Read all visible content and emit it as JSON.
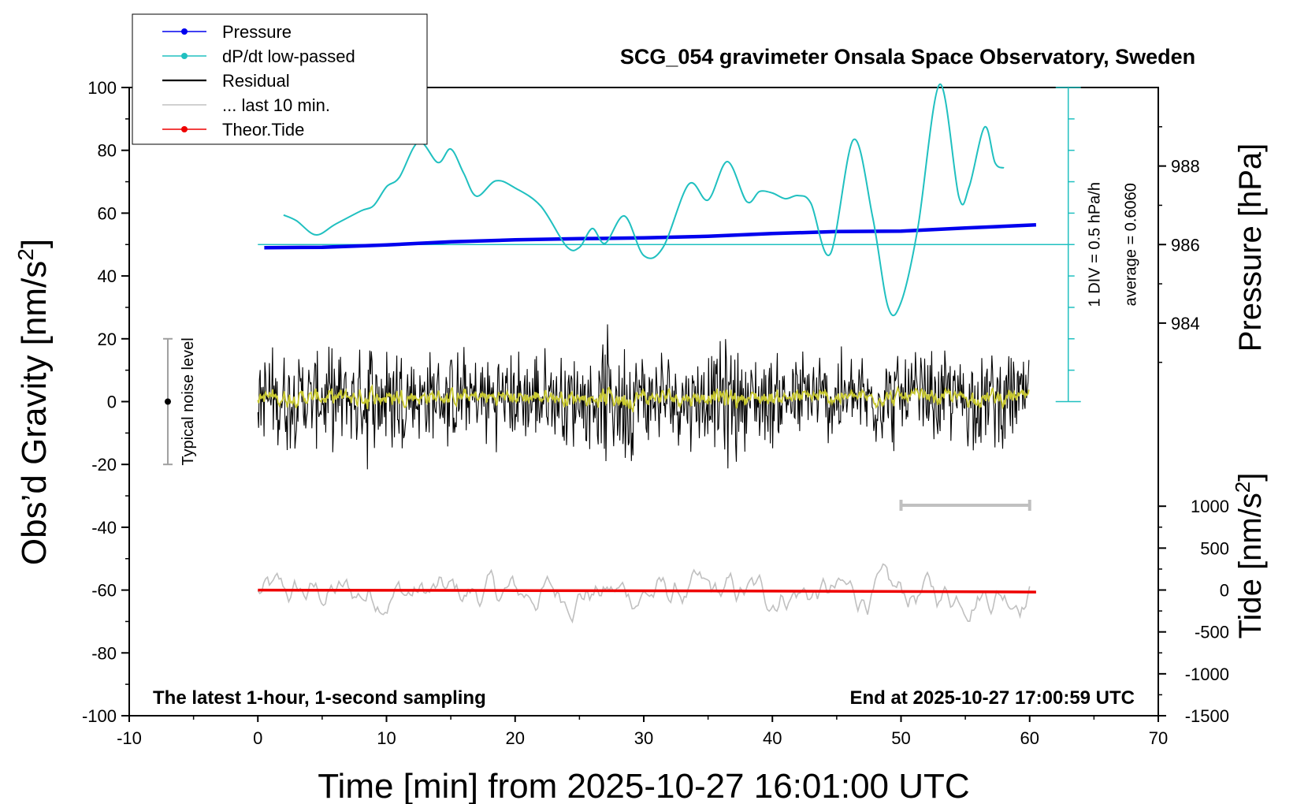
{
  "chart_data": {
    "type": "line",
    "title": "SCG_054 gravimeter Onsala Space Observatory, Sweden",
    "xlabel": "Time [min] from 2025-10-27 16:01:00 UTC",
    "ylabel_left": "Obs’d Gravity [nm/s2]",
    "ylabel_left_base": "Obs’d Gravity [nm/s",
    "ylabel_sup": "2",
    "ylabel_close": "]",
    "ylabel_right_top": "Pressure [hPa]",
    "ylabel_right_bottom_base": "Tide [nm/s",
    "xlim": [
      -10,
      70
    ],
    "ylim_left": [
      -100,
      100
    ],
    "x_ticks": [
      -10,
      0,
      10,
      20,
      30,
      40,
      50,
      60,
      70
    ],
    "x_tick_labels": [
      "-10",
      "0",
      "10",
      "20",
      "30",
      "40",
      "50",
      "60",
      "70"
    ],
    "y_left_ticks": [
      100,
      80,
      60,
      40,
      20,
      0,
      -20,
      -40,
      -60,
      -80,
      -100
    ],
    "y_left_tick_labels": [
      "100",
      "80",
      "60",
      "40",
      "20",
      "0",
      "-20",
      "-40",
      "-60",
      "-80",
      "-100"
    ],
    "pressure_ticks": [
      988,
      986,
      984
    ],
    "pressure_tick_labels": [
      "988",
      "986",
      "984"
    ],
    "pressure_axis": {
      "ref_hpa": 986,
      "ref_gravity": 50,
      "hpa_per_unit": 0.08
    },
    "tide_ticks": [
      1000,
      500,
      0,
      -500,
      -1000,
      -1500
    ],
    "tide_tick_labels": [
      "1000",
      "500",
      "0",
      "-500",
      "-1000",
      "-1500"
    ],
    "tide_axis": {
      "min": -1500,
      "max": 1000,
      "gravity_at_min": -100,
      "gravity_at_max": -33.3
    },
    "legend": [
      {
        "label": "Pressure",
        "color": "#0000ee",
        "marker": true
      },
      {
        "label": "dP/dt low-passed",
        "color": "#20c0c0",
        "marker": true
      },
      {
        "label": "Residual",
        "color": "#000000",
        "marker": false
      },
      {
        "label": "... last 10 min.",
        "color": "#c0c0c0",
        "marker": false
      },
      {
        "label": "Theor.Tide",
        "color": "#ee0000",
        "marker": true
      }
    ],
    "series": [
      {
        "name": "Pressure",
        "color": "#0000ee",
        "axis": "pressure_hpa",
        "x": [
          0.5,
          5,
          10,
          15,
          20,
          25,
          30,
          35,
          40,
          45,
          50,
          55,
          60.5
        ],
        "values": [
          985.92,
          985.93,
          985.99,
          986.07,
          986.12,
          986.15,
          986.17,
          986.21,
          986.28,
          986.33,
          986.34,
          986.42,
          986.5
        ]
      },
      {
        "name": "dP/dt low-passed",
        "color": "#20c0c0",
        "axis": "dpdt_div",
        "x": [
          2,
          3,
          4.5,
          6,
          8,
          9,
          10,
          11,
          12.5,
          14,
          15,
          16,
          17,
          18.5,
          20,
          22,
          24,
          25,
          26,
          27,
          28.5,
          30,
          31.5,
          33.5,
          35,
          36.5,
          38,
          39,
          40,
          41,
          42,
          43,
          44.5,
          46.3,
          47.8,
          49,
          50,
          51.3,
          53,
          54.5,
          55.3,
          56.5,
          57.3,
          58
        ],
        "values": [
          0.94,
          0.76,
          0.31,
          0.64,
          1.07,
          1.24,
          1.84,
          2.14,
          3.27,
          2.61,
          3.04,
          2.27,
          1.54,
          2.03,
          1.8,
          1.22,
          -0.06,
          -0.09,
          0.51,
          0.04,
          0.91,
          -0.35,
          -0.09,
          1.92,
          1.42,
          2.64,
          1.37,
          1.69,
          1.64,
          1.46,
          1.56,
          1.31,
          -0.3,
          3.34,
          0.86,
          -2.0,
          -1.84,
          0.51,
          5.1,
          1.51,
          1.84,
          3.74,
          2.61,
          2.44
        ]
      },
      {
        "name": "Theor.Tide",
        "color": "#ee0000",
        "axis": "tide",
        "x": [
          0,
          10,
          20,
          30,
          40,
          50,
          60.5
        ],
        "values": [
          -1,
          -4,
          -6,
          -9,
          -13,
          -18,
          -24
        ]
      }
    ],
    "dpdt_axis": {
      "div_label": "1 DIV = 0.5 hPa/h",
      "average_label": "average = 0.6060",
      "x": 63,
      "baseline_gravity": 50,
      "units_per_div": 10,
      "divisions": 5
    },
    "residual_band": {
      "x_start": 0,
      "x_end": 60,
      "amplitude": 18,
      "center": 1
    },
    "last10_band": {
      "x_start": 0,
      "x_end": 60,
      "center": -61,
      "amplitude": 9
    },
    "last10_bar": {
      "x_start": 50,
      "x_end": 60,
      "y": -33
    },
    "noise_bar": {
      "label": "Typical noise level",
      "x": -7,
      "low": -20,
      "high": 20,
      "center": 0
    },
    "annotations": {
      "bottom_left": "The latest 1-hour, 1-second sampling",
      "bottom_right": "End at 2025-10-27 17:00:59 UTC"
    }
  }
}
